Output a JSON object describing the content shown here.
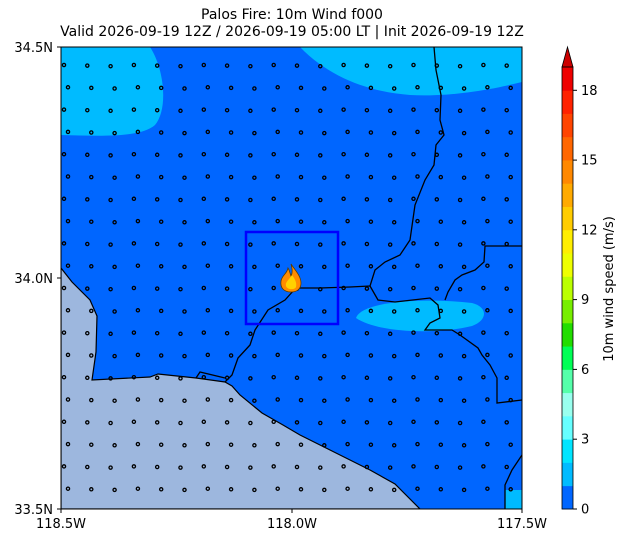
{
  "title_line1": "Palos Fire: 10m Wind f000",
  "title_line2": "Valid 2026-09-19 12Z / 2026-09-19 05:00 LT | Init 2026-09-19 12Z",
  "map": {
    "lon_range": [
      -118.5,
      -117.5
    ],
    "lat_range": [
      33.5,
      34.5
    ],
    "x_ticks": [
      "118.5W",
      "118.0W",
      "117.5W"
    ],
    "y_ticks": [
      "34.5N",
      "34.0N",
      "33.5N"
    ],
    "fire_icon": "flame-icon",
    "focus_box_color": "#0000ff",
    "land_wind_color": "#0066ff",
    "higher_wind_color": "#00bbff",
    "ocean_color": "#9db7de"
  },
  "colorbar": {
    "label": "10m wind speed (m/s)",
    "ticks": [
      "0",
      "3",
      "6",
      "9",
      "12",
      "15",
      "18"
    ],
    "levels": [
      0,
      1,
      2,
      3,
      4,
      5,
      6,
      7,
      8,
      9,
      10,
      11,
      12,
      13,
      14,
      15,
      16,
      17,
      18,
      19
    ],
    "colors": [
      "#0066ff",
      "#00bbff",
      "#00e5ff",
      "#66ffff",
      "#99ffee",
      "#55ffaa",
      "#00ff55",
      "#22dd00",
      "#77ee00",
      "#bbff00",
      "#eeff00",
      "#ffee00",
      "#ffcc00",
      "#ffaa00",
      "#ff8800",
      "#ff6600",
      "#ff4400",
      "#ff2200",
      "#ee0000"
    ],
    "extend": "max"
  }
}
